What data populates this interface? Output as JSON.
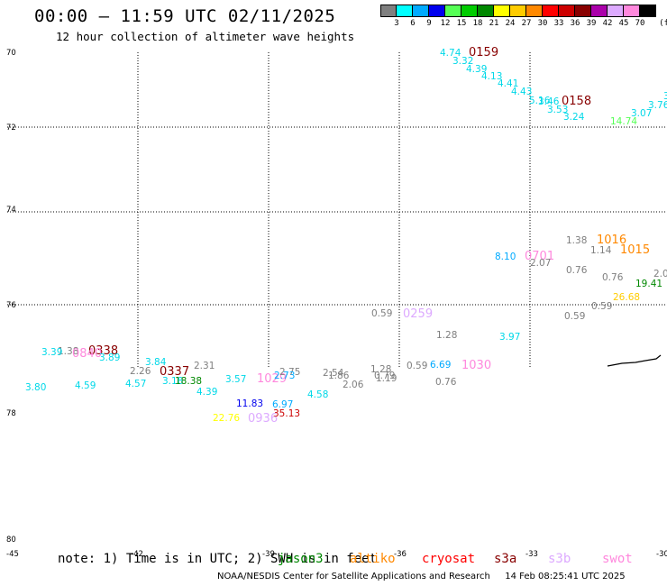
{
  "header": {
    "title": "00:00 – 11:59 UTC 02/11/2025",
    "subtitle": "12 hour collection of altimeter wave heights"
  },
  "colorbar": {
    "unit": "(ft)",
    "colors": [
      "#7f7f7f",
      "#00ffff",
      "#00aaff",
      "#0000ee",
      "#55ff55",
      "#00cc00",
      "#008800",
      "#ffff00",
      "#ffcc00",
      "#ff8800",
      "#ff0000",
      "#cc0000",
      "#880000",
      "#aa00aa",
      "#ddaaff",
      "#ff88dd",
      "#000000"
    ],
    "labels": [
      "3",
      "6",
      "9",
      "12",
      "15",
      "18",
      "21",
      "24",
      "27",
      "30",
      "33",
      "36",
      "39",
      "42",
      "45",
      "70"
    ]
  },
  "map": {
    "lat_ticks": [
      "70",
      "72",
      "74",
      "76",
      "78",
      "80"
    ],
    "lon_ticks": [
      "-45",
      "-42",
      "-39",
      "-36",
      "-33",
      "-30"
    ]
  },
  "observations": [
    {
      "text": "4.74",
      "color": "#00d8e8"
    },
    {
      "text": "0159",
      "color": "#880000",
      "pass": true
    },
    {
      "text": "3.32",
      "color": "#00d8e8"
    },
    {
      "text": "4.39",
      "color": "#00d8e8"
    },
    {
      "text": "4.13",
      "color": "#00d8e8"
    },
    {
      "text": "4.41",
      "color": "#00d8e8"
    },
    {
      "text": "4.43",
      "color": "#00d8e8"
    },
    {
      "text": "5.16",
      "color": "#00d8e8"
    },
    {
      "text": "3.46",
      "color": "#00d8e8"
    },
    {
      "text": "0158",
      "color": "#880000",
      "pass": true
    },
    {
      "text": "3.53",
      "color": "#00d8e8"
    },
    {
      "text": "3.24",
      "color": "#00d8e8"
    },
    {
      "text": "14.74",
      "color": "#55ff55"
    },
    {
      "text": "3.07",
      "color": "#00d8e8"
    },
    {
      "text": "3.76",
      "color": "#00d8e8"
    },
    {
      "text": "3.",
      "color": "#00d8e8"
    },
    {
      "text": "1.38",
      "color": "#7f7f7f"
    },
    {
      "text": "1016",
      "color": "#ff8800",
      "pass": true
    },
    {
      "text": "8.10",
      "color": "#00aaff"
    },
    {
      "text": "0701",
      "color": "#ff88dd",
      "pass": true
    },
    {
      "text": "1.14",
      "color": "#7f7f7f"
    },
    {
      "text": "1015",
      "color": "#ff8800",
      "pass": true
    },
    {
      "text": "2.07",
      "color": "#7f7f7f"
    },
    {
      "text": "0.76",
      "color": "#7f7f7f"
    },
    {
      "text": "0.76",
      "color": "#7f7f7f"
    },
    {
      "text": "2.0",
      "color": "#7f7f7f"
    },
    {
      "text": "19.41",
      "color": "#008800"
    },
    {
      "text": "26.68",
      "color": "#ffcc00"
    },
    {
      "text": "0.59",
      "color": "#7f7f7f"
    },
    {
      "text": "0.59",
      "color": "#7f7f7f"
    },
    {
      "text": "0.59",
      "color": "#7f7f7f"
    },
    {
      "text": "0259",
      "color": "#ddaaff",
      "pass": true
    },
    {
      "text": "1.28",
      "color": "#7f7f7f"
    },
    {
      "text": "3.97",
      "color": "#00d8e8"
    },
    {
      "text": "1.38",
      "color": "#7f7f7f"
    },
    {
      "text": "0338",
      "color": "#880000",
      "pass": true
    },
    {
      "text": "3.39",
      "color": "#00d8e8"
    },
    {
      "text": "0840",
      "color": "#ff88dd",
      "pass": true
    },
    {
      "text": "3.89",
      "color": "#00d8e8"
    },
    {
      "text": "3.84",
      "color": "#00d8e8"
    },
    {
      "text": "2.26",
      "color": "#7f7f7f"
    },
    {
      "text": "0337",
      "color": "#880000",
      "pass": true
    },
    {
      "text": "2.31",
      "color": "#7f7f7f"
    },
    {
      "text": "3.18",
      "color": "#00d8e8"
    },
    {
      "text": "18.38",
      "color": "#008800"
    },
    {
      "text": "3.80",
      "color": "#00d8e8"
    },
    {
      "text": "4.59",
      "color": "#00d8e8"
    },
    {
      "text": "4.57",
      "color": "#00d8e8"
    },
    {
      "text": "4.39",
      "color": "#00d8e8"
    },
    {
      "text": "3.57",
      "color": "#00d8e8"
    },
    {
      "text": "1029",
      "color": "#ff88dd",
      "pass": true
    },
    {
      "text": "2.75",
      "color": "#7f7f7f"
    },
    {
      "text": "2.73",
      "color": "#00aaff"
    },
    {
      "text": "2.54",
      "color": "#7f7f7f"
    },
    {
      "text": "1.86",
      "color": "#7f7f7f"
    },
    {
      "text": "2.06",
      "color": "#7f7f7f"
    },
    {
      "text": "1.28",
      "color": "#7f7f7f"
    },
    {
      "text": "0.79",
      "color": "#7f7f7f"
    },
    {
      "text": "1.19",
      "color": "#7f7f7f"
    },
    {
      "text": "0.59",
      "color": "#7f7f7f"
    },
    {
      "text": "6.69",
      "color": "#00aaff"
    },
    {
      "text": "1030",
      "color": "#ff88dd",
      "pass": true
    },
    {
      "text": "0.76",
      "color": "#7f7f7f"
    },
    {
      "text": "4.58",
      "color": "#00d8e8"
    },
    {
      "text": "11.83",
      "color": "#0000ee"
    },
    {
      "text": "6.97",
      "color": "#00aaff"
    },
    {
      "text": "35.13",
      "color": "#cc0000"
    },
    {
      "text": "22.76",
      "color": "#ffff00"
    },
    {
      "text": "0936",
      "color": "#ddaaff",
      "pass": true
    }
  ],
  "footer": {
    "note": "note: 1) Time is in UTC; 2) SWH is in feet",
    "satellites": [
      {
        "name": "jason3",
        "color": "#008800"
      },
      {
        "name": "altiko",
        "color": "#ff8800"
      },
      {
        "name": "cryosat",
        "color": "#ff0000"
      },
      {
        "name": "s3a",
        "color": "#880000"
      },
      {
        "name": "s3b",
        "color": "#ddaaff"
      },
      {
        "name": "swot",
        "color": "#ff88dd"
      }
    ],
    "credit": "NOAA/NESDIS Center for Satellite Applications and Research",
    "timestamp": "14 Feb 08:25:41 UTC 2025"
  }
}
